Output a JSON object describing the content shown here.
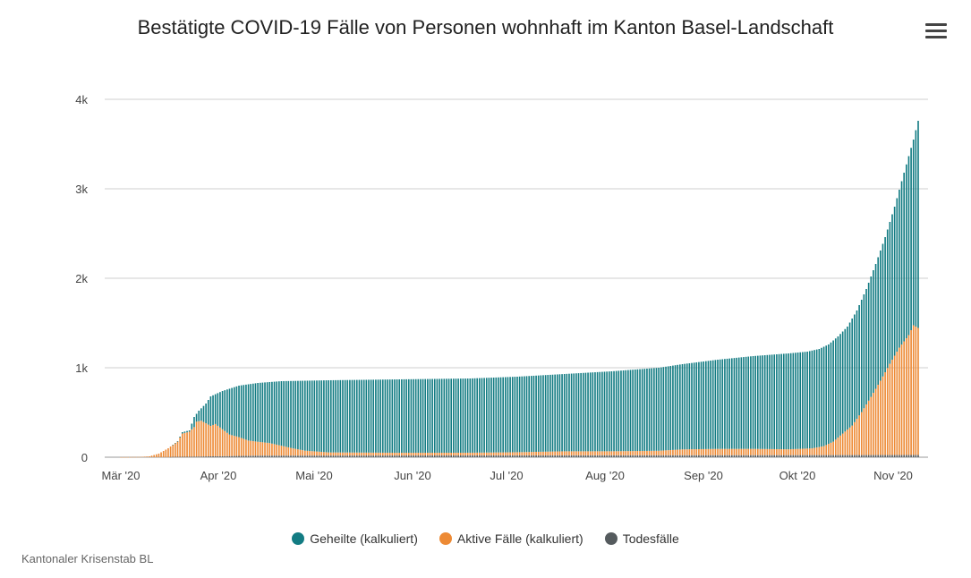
{
  "chart_data": {
    "type": "bar",
    "stacked": true,
    "title": "Bestätigte COVID-19 Fälle von Personen wohnhaft im Kanton Basel-Landschaft",
    "ylim": [
      0,
      4000
    ],
    "y_ticks": [
      {
        "value": 0,
        "label": "0"
      },
      {
        "value": 1000,
        "label": "1k"
      },
      {
        "value": 2000,
        "label": "2k"
      },
      {
        "value": 3000,
        "label": "3k"
      },
      {
        "value": 4000,
        "label": "4k"
      }
    ],
    "x_ticks": [
      "Mär '20",
      "Apr '20",
      "Mai '20",
      "Jun '20",
      "Jul '20",
      "Aug '20",
      "Sep '20",
      "Okt '20",
      "Nov '20"
    ],
    "grid": true,
    "legend_position": "bottom",
    "series": [
      {
        "name": "Geheilte (kalkuliert)",
        "color": "#137c83"
      },
      {
        "name": "Aktive Fälle (kalkuliert)",
        "color": "#ed8a35"
      },
      {
        "name": "Todesfälle",
        "color": "#555b5e"
      }
    ],
    "keyframes_total": [
      [
        0,
        0
      ],
      [
        10,
        3
      ],
      [
        14,
        10
      ],
      [
        18,
        40
      ],
      [
        22,
        100
      ],
      [
        26,
        180
      ],
      [
        28,
        280
      ],
      [
        31,
        300
      ],
      [
        33,
        450
      ],
      [
        35,
        520
      ],
      [
        38,
        600
      ],
      [
        40,
        680
      ],
      [
        45,
        740
      ],
      [
        52,
        800
      ],
      [
        60,
        830
      ],
      [
        70,
        850
      ],
      [
        90,
        860
      ],
      [
        120,
        870
      ],
      [
        150,
        880
      ],
      [
        170,
        900
      ],
      [
        190,
        930
      ],
      [
        210,
        960
      ],
      [
        230,
        1000
      ],
      [
        240,
        1040
      ],
      [
        255,
        1090
      ],
      [
        270,
        1130
      ],
      [
        285,
        1160
      ],
      [
        293,
        1180
      ],
      [
        298,
        1210
      ],
      [
        302,
        1260
      ],
      [
        306,
        1350
      ],
      [
        310,
        1460
      ],
      [
        314,
        1640
      ],
      [
        318,
        1880
      ],
      [
        322,
        2160
      ],
      [
        326,
        2460
      ],
      [
        330,
        2800
      ],
      [
        334,
        3180
      ],
      [
        338,
        3550
      ],
      [
        340,
        3760
      ]
    ],
    "keyframes_active": [
      [
        0,
        0
      ],
      [
        10,
        3
      ],
      [
        14,
        10
      ],
      [
        18,
        40
      ],
      [
        22,
        100
      ],
      [
        26,
        170
      ],
      [
        28,
        260
      ],
      [
        31,
        280
      ],
      [
        33,
        330
      ],
      [
        34,
        390
      ],
      [
        36,
        400
      ],
      [
        38,
        370
      ],
      [
        40,
        340
      ],
      [
        42,
        360
      ],
      [
        45,
        300
      ],
      [
        48,
        240
      ],
      [
        52,
        210
      ],
      [
        56,
        170
      ],
      [
        60,
        155
      ],
      [
        65,
        140
      ],
      [
        70,
        110
      ],
      [
        75,
        80
      ],
      [
        80,
        55
      ],
      [
        90,
        35
      ],
      [
        120,
        30
      ],
      [
        150,
        30
      ],
      [
        170,
        35
      ],
      [
        190,
        45
      ],
      [
        210,
        45
      ],
      [
        230,
        50
      ],
      [
        240,
        65
      ],
      [
        255,
        70
      ],
      [
        270,
        70
      ],
      [
        285,
        65
      ],
      [
        295,
        75
      ],
      [
        300,
        100
      ],
      [
        304,
        150
      ],
      [
        308,
        240
      ],
      [
        312,
        330
      ],
      [
        316,
        480
      ],
      [
        320,
        650
      ],
      [
        324,
        830
      ],
      [
        328,
        1020
      ],
      [
        332,
        1200
      ],
      [
        336,
        1340
      ],
      [
        338,
        1450
      ],
      [
        340,
        1420
      ]
    ],
    "keyframes_deaths": [
      [
        0,
        0
      ],
      [
        30,
        5
      ],
      [
        40,
        10
      ],
      [
        60,
        18
      ],
      [
        340,
        25
      ]
    ]
  },
  "credits": "Kantonaler Krisenstab BL",
  "menu_icon": "hamburger-menu-icon"
}
